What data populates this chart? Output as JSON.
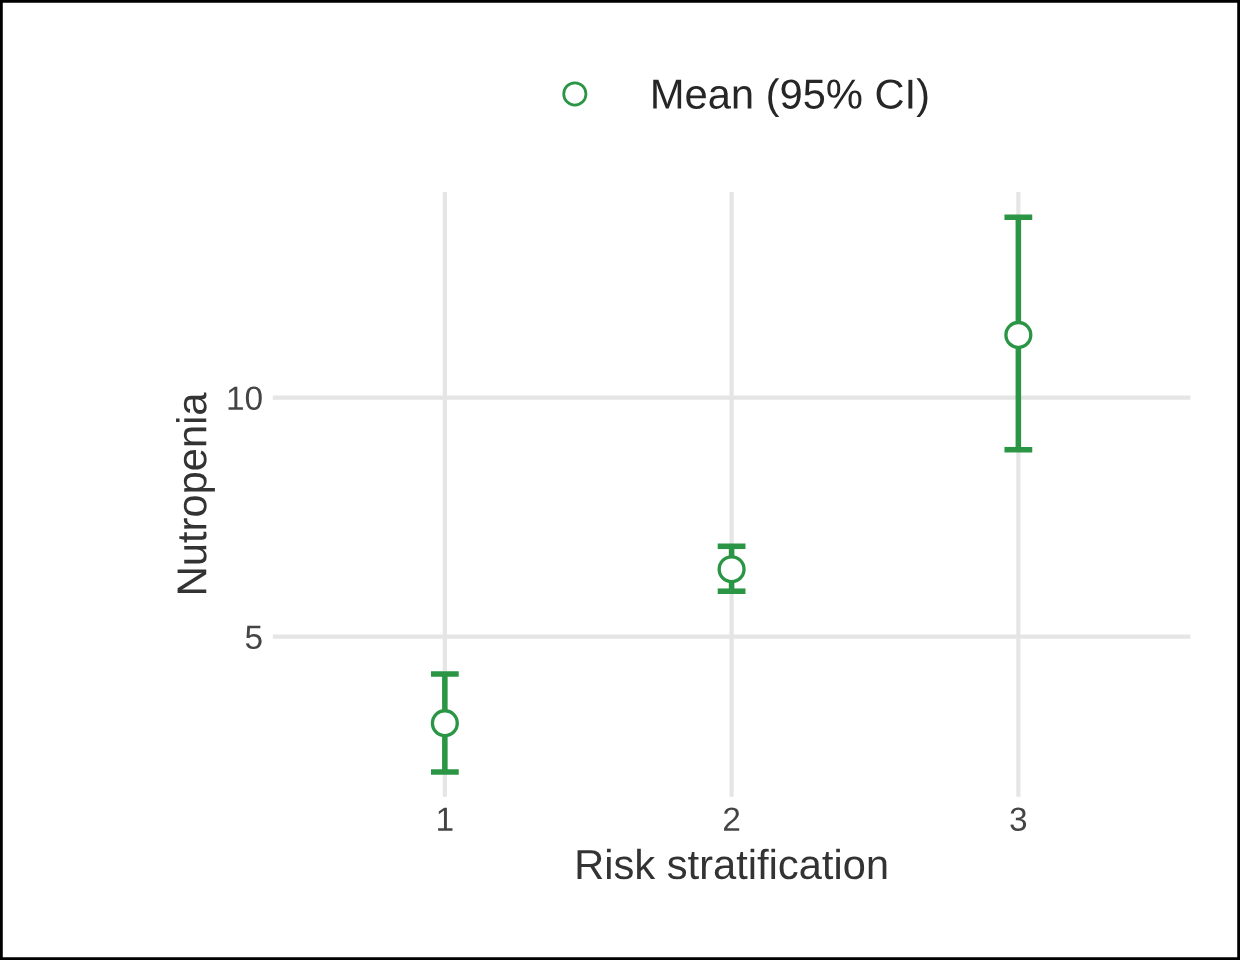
{
  "chart_data": {
    "type": "scatter",
    "xlabel": "Risk stratification",
    "ylabel": "Nutropenia",
    "categories": [
      "1",
      "2",
      "3"
    ],
    "series": [
      {
        "name": "Mean (95% CI)",
        "color": "#2a9645",
        "values": [
          3.19,
          6.41,
          11.31
        ],
        "errors": [
          [
            2.17,
            4.22
          ],
          [
            5.95,
            6.89
          ],
          [
            8.91,
            13.77
          ]
        ]
      }
    ],
    "ylim": [
      1.65,
      14.3
    ],
    "yticks": [
      5,
      10
    ],
    "grid": true,
    "legend": "top",
    "marker": "circle"
  }
}
